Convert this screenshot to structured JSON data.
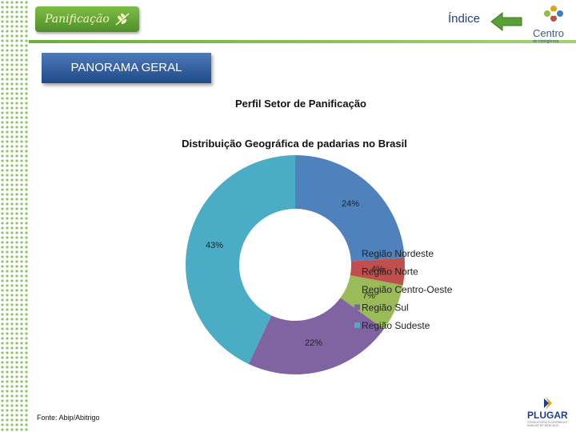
{
  "header": {
    "brand_label": "Panificação",
    "index_link": "Índice",
    "partner_logo_text": "Centro",
    "partner_logo_subtext": "de Inteligência",
    "accent_color": "#6cae3a"
  },
  "section": {
    "tab_label": "PANORAMA GERAL"
  },
  "slide": {
    "title": "Perfil Setor de Panificação"
  },
  "footer": {
    "source": "Fonte: Abip/Abitrigo",
    "sponsor_logo_text": "PLUGAR",
    "sponsor_logo_subtext": "CONSULTORIA ECONÔMICA E ANÁLISE DE MERCADO"
  },
  "chart_data": {
    "type": "pie",
    "variant": "donut",
    "title": "Distribuição Geográfica de padarias no Brasil",
    "categories": [
      "Região Nordeste",
      "Região Norte",
      "Região Centro-Oeste",
      "Região Sul",
      "Região Sudeste"
    ],
    "values": [
      24,
      4,
      7,
      22,
      43
    ],
    "value_labels": [
      "24%",
      "4%",
      "7%",
      "22%",
      "43%"
    ],
    "colors": [
      "#4f81bd",
      "#c0504d",
      "#9bbb59",
      "#8064a2",
      "#4bacc6"
    ],
    "legend_position": "right"
  }
}
